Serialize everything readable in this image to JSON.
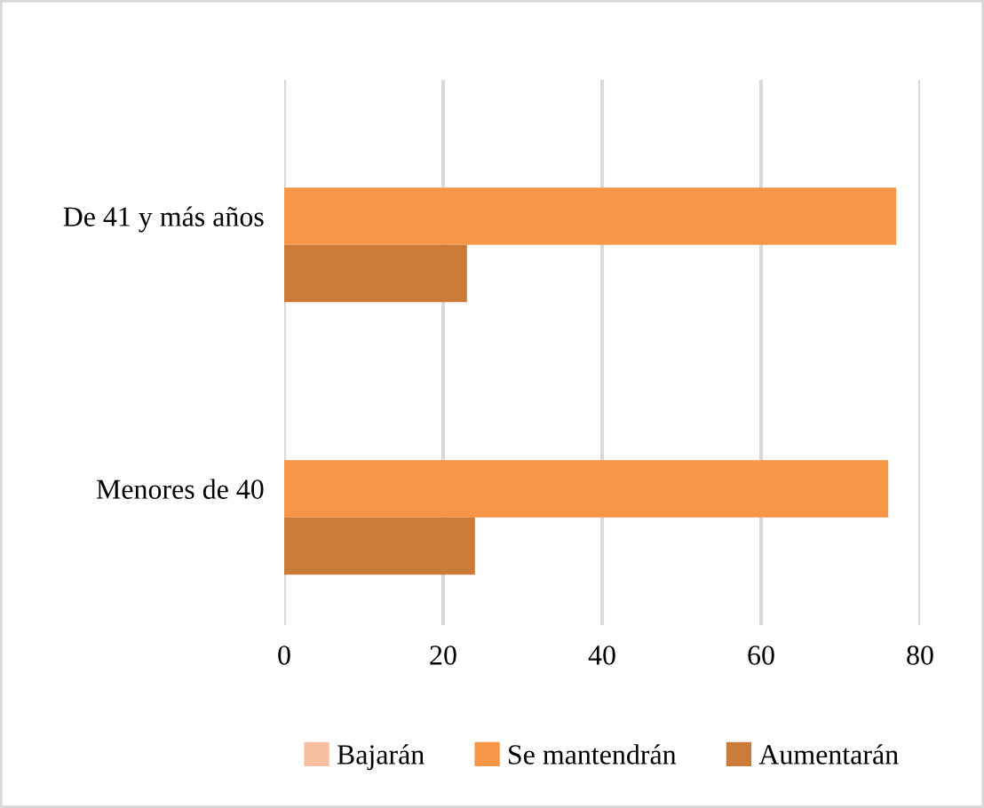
{
  "chart_data": {
    "type": "bar",
    "orientation": "horizontal",
    "categories": [
      "De 41 y más años",
      "Menores de 40"
    ],
    "series": [
      {
        "name": "Bajarán",
        "color": "#f8c0a0",
        "values": [
          0,
          0
        ]
      },
      {
        "name": "Se mantendrán",
        "color": "#f79646",
        "values": [
          77,
          76
        ]
      },
      {
        "name": "Aumentarán",
        "color": "#cb7b38",
        "values": [
          23,
          24
        ]
      }
    ],
    "xlim": [
      0,
      80
    ],
    "xticks": [
      0,
      20,
      40,
      60,
      80
    ],
    "grid": "x",
    "legend": "bottom"
  }
}
